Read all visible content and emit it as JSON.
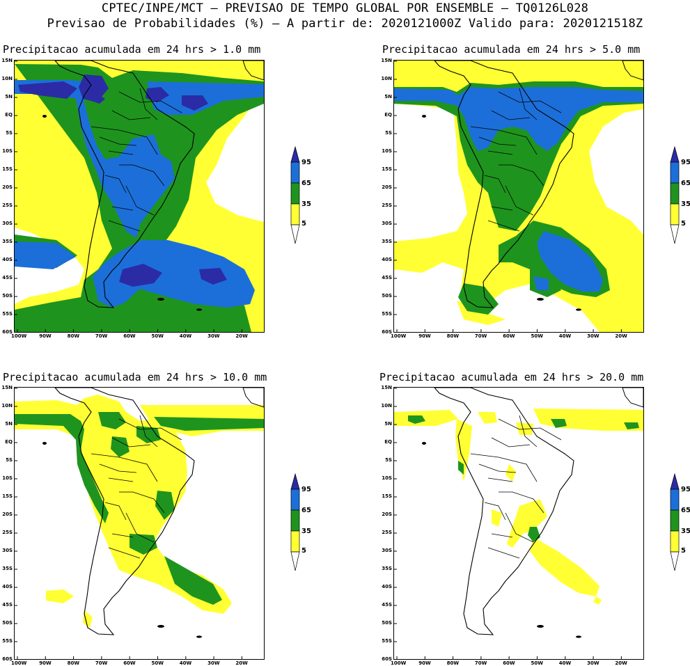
{
  "header": {
    "line1": "CPTEC/INPE/MCT – PREVISAO DE TEMPO GLOBAL POR ENSEMBLE – TQ0126L028",
    "line2": "Previsao de Probabilidades (%) –  A partir de: 2020121000Z  Valido para: 2020121518Z"
  },
  "panels": [
    {
      "title": "Precipitacao acumulada em 24 hrs > 1.0 mm",
      "level": 1
    },
    {
      "title": "Precipitacao acumulada em 24 hrs > 5.0 mm",
      "level": 2
    },
    {
      "title": "Precipitacao acumulada em 24 hrs > 10.0 mm",
      "level": 3
    },
    {
      "title": "Precipitacao acumulada em 24 hrs > 20.0 mm",
      "level": 4
    }
  ],
  "lat_labels": [
    "15N",
    "10N",
    "5N",
    "EQ",
    "5S",
    "10S",
    "15S",
    "20S",
    "25S",
    "30S",
    "35S",
    "40S",
    "45S",
    "50S",
    "55S",
    "60S"
  ],
  "lon_labels": [
    "100W",
    "90W",
    "80W",
    "70W",
    "60W",
    "50W",
    "40W",
    "30W",
    "20W"
  ],
  "legend": {
    "labels": [
      "95",
      "65",
      "35",
      "5"
    ],
    "colors": {
      "c95": "#2b2ba6",
      "c65": "#1c6fd8",
      "c35": "#1e941e",
      "c5": "#ffff33",
      "land": "#000000"
    }
  }
}
